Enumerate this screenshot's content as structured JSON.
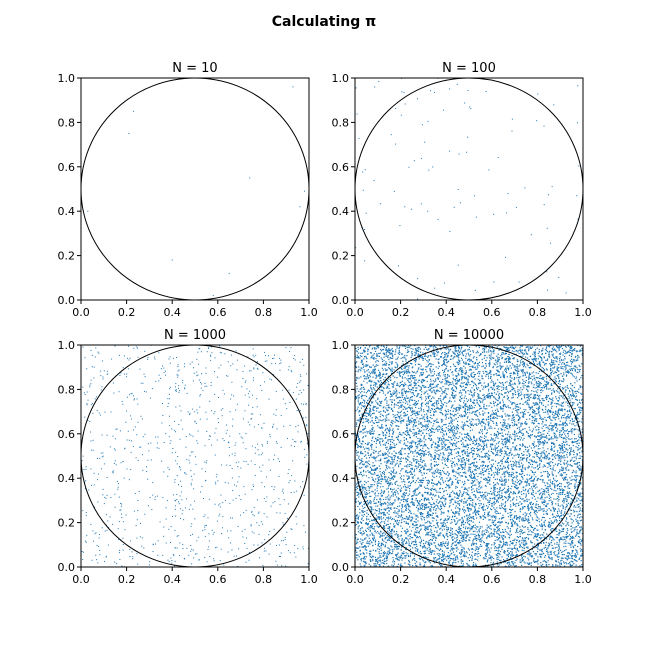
{
  "figure": {
    "title": "Calculating π"
  },
  "chart_data": [
    {
      "type": "scatter",
      "title": "N = 10",
      "n_points": 10,
      "xlim": [
        0,
        1
      ],
      "ylim": [
        0,
        1
      ],
      "x_ticks": [
        "0.0",
        "0.2",
        "0.4",
        "0.6",
        "0.8",
        "1.0"
      ],
      "y_ticks": [
        "0.0",
        "0.2",
        "0.4",
        "0.6",
        "0.8",
        "1.0"
      ],
      "point_color": "#1f77b4",
      "circle": {
        "cx": 0.5,
        "cy": 0.5,
        "r": 0.5
      },
      "points": [
        [
          0.93,
          0.96
        ],
        [
          0.23,
          0.85
        ],
        [
          0.21,
          0.75
        ],
        [
          0.98,
          0.49
        ],
        [
          0.03,
          0.4
        ],
        [
          0.96,
          0.42
        ],
        [
          0.4,
          0.18
        ],
        [
          0.65,
          0.12
        ],
        [
          0.58,
          0.02
        ],
        [
          0.74,
          0.55
        ]
      ]
    },
    {
      "type": "scatter",
      "title": "N = 100",
      "n_points": 100,
      "xlim": [
        0,
        1
      ],
      "ylim": [
        0,
        1
      ],
      "x_ticks": [
        "0.0",
        "0.2",
        "0.4",
        "0.6",
        "0.8",
        "1.0"
      ],
      "y_ticks": [
        "0.0",
        "0.2",
        "0.4",
        "0.6",
        "0.8",
        "1.0"
      ],
      "point_color": "#1f77b4",
      "circle": {
        "cx": 0.5,
        "cy": 0.5,
        "r": 0.5
      }
    },
    {
      "type": "scatter",
      "title": "N = 1000",
      "n_points": 1000,
      "xlim": [
        0,
        1
      ],
      "ylim": [
        0,
        1
      ],
      "x_ticks": [
        "0.0",
        "0.2",
        "0.4",
        "0.6",
        "0.8",
        "1.0"
      ],
      "y_ticks": [
        "0.0",
        "0.2",
        "0.4",
        "0.6",
        "0.8",
        "1.0"
      ],
      "point_color": "#1f77b4",
      "circle": {
        "cx": 0.5,
        "cy": 0.5,
        "r": 0.5
      }
    },
    {
      "type": "scatter",
      "title": "N = 10000",
      "n_points": 10000,
      "xlim": [
        0,
        1
      ],
      "ylim": [
        0,
        1
      ],
      "x_ticks": [
        "0.0",
        "0.2",
        "0.4",
        "0.6",
        "0.8",
        "1.0"
      ],
      "y_ticks": [
        "0.0",
        "0.2",
        "0.4",
        "0.6",
        "0.8",
        "1.0"
      ],
      "point_color": "#1f77b4",
      "circle": {
        "cx": 0.5,
        "cy": 0.5,
        "r": 0.5
      }
    }
  ]
}
